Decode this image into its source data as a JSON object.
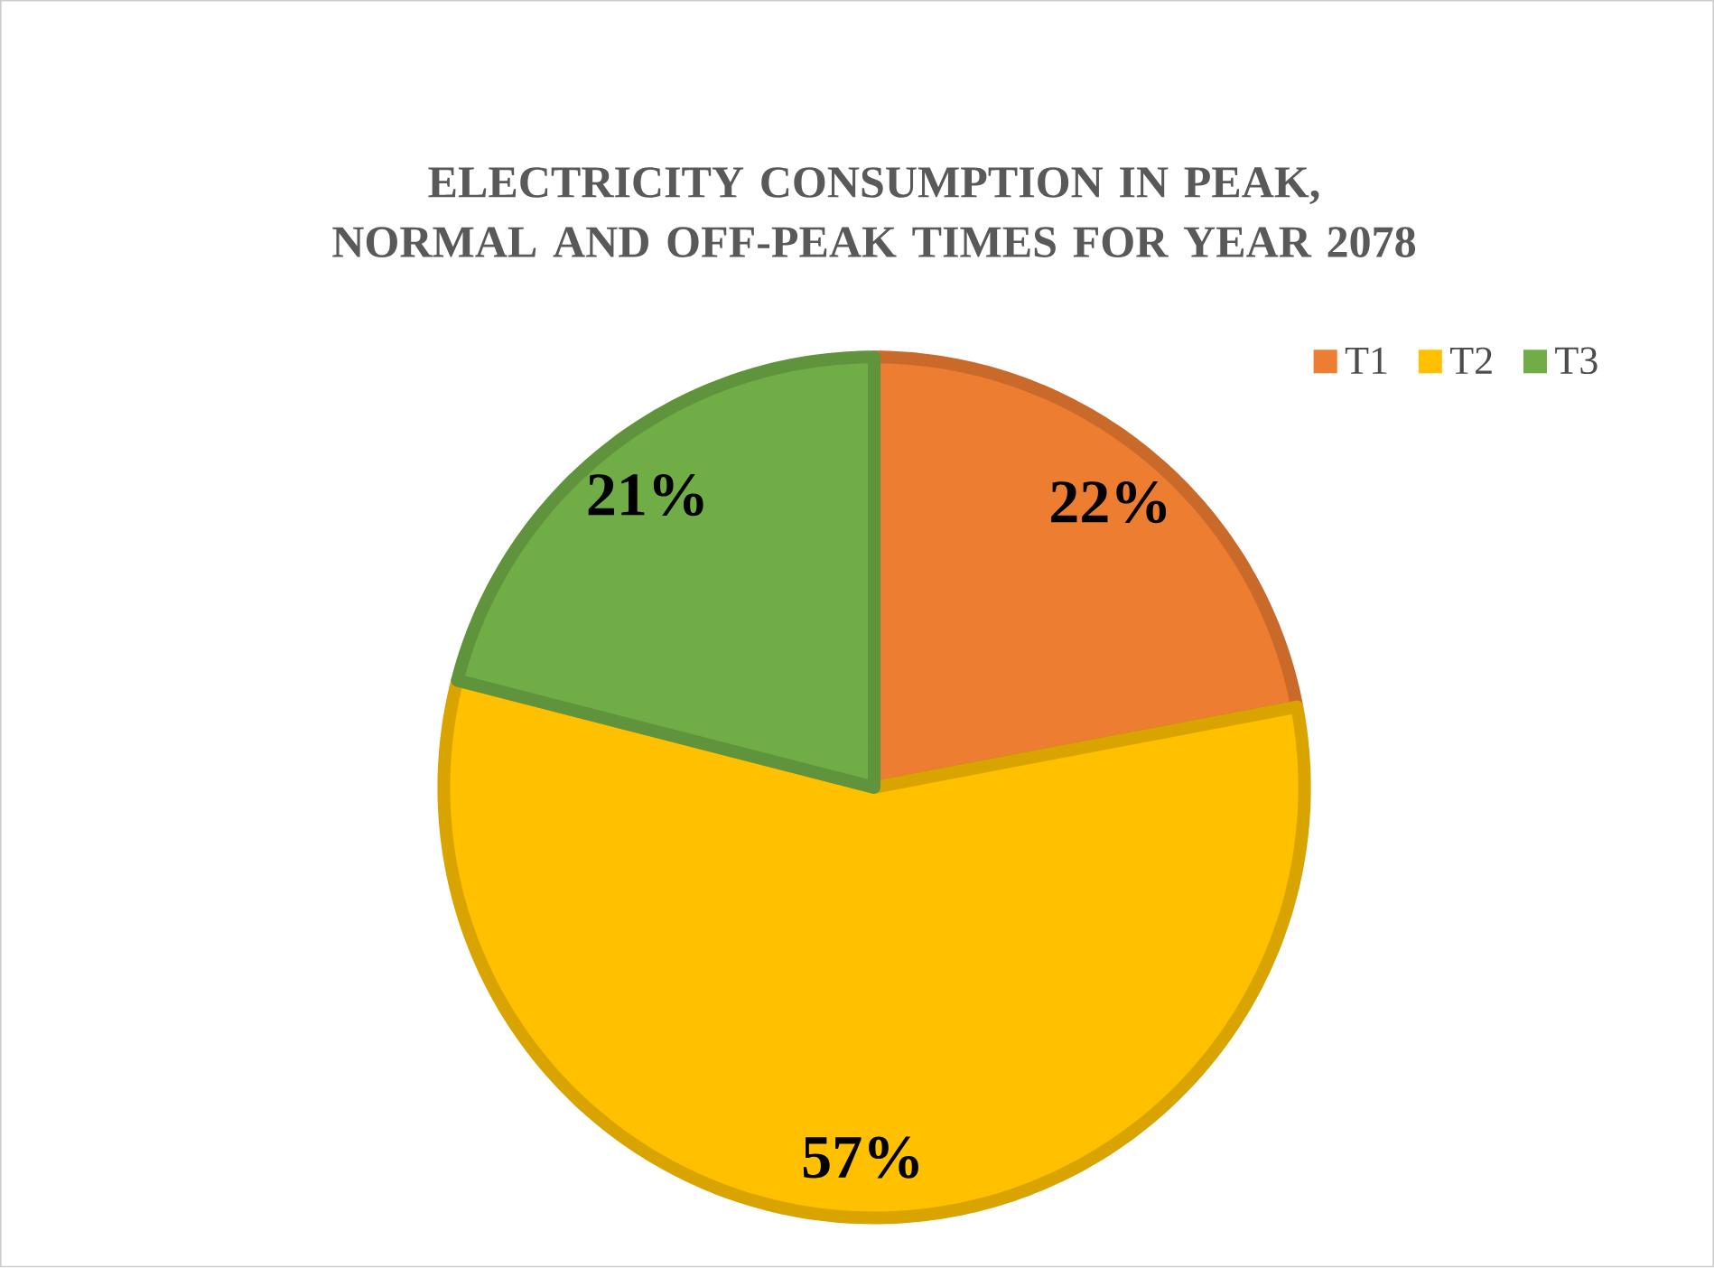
{
  "chart_data": {
    "type": "pie",
    "title": "ELECTRICITY CONSUMPTION IN PEAK, NORMAL AND OFF-PEAK TIMES FOR YEAR 2078",
    "categories": [
      "T1",
      "T2",
      "T3"
    ],
    "values": [
      22,
      57,
      21
    ],
    "colors": [
      "#ed7d31",
      "#ffc000",
      "#70ad47"
    ],
    "value_labels": [
      "22%",
      "57%",
      "21%"
    ],
    "legend": "top right"
  }
}
